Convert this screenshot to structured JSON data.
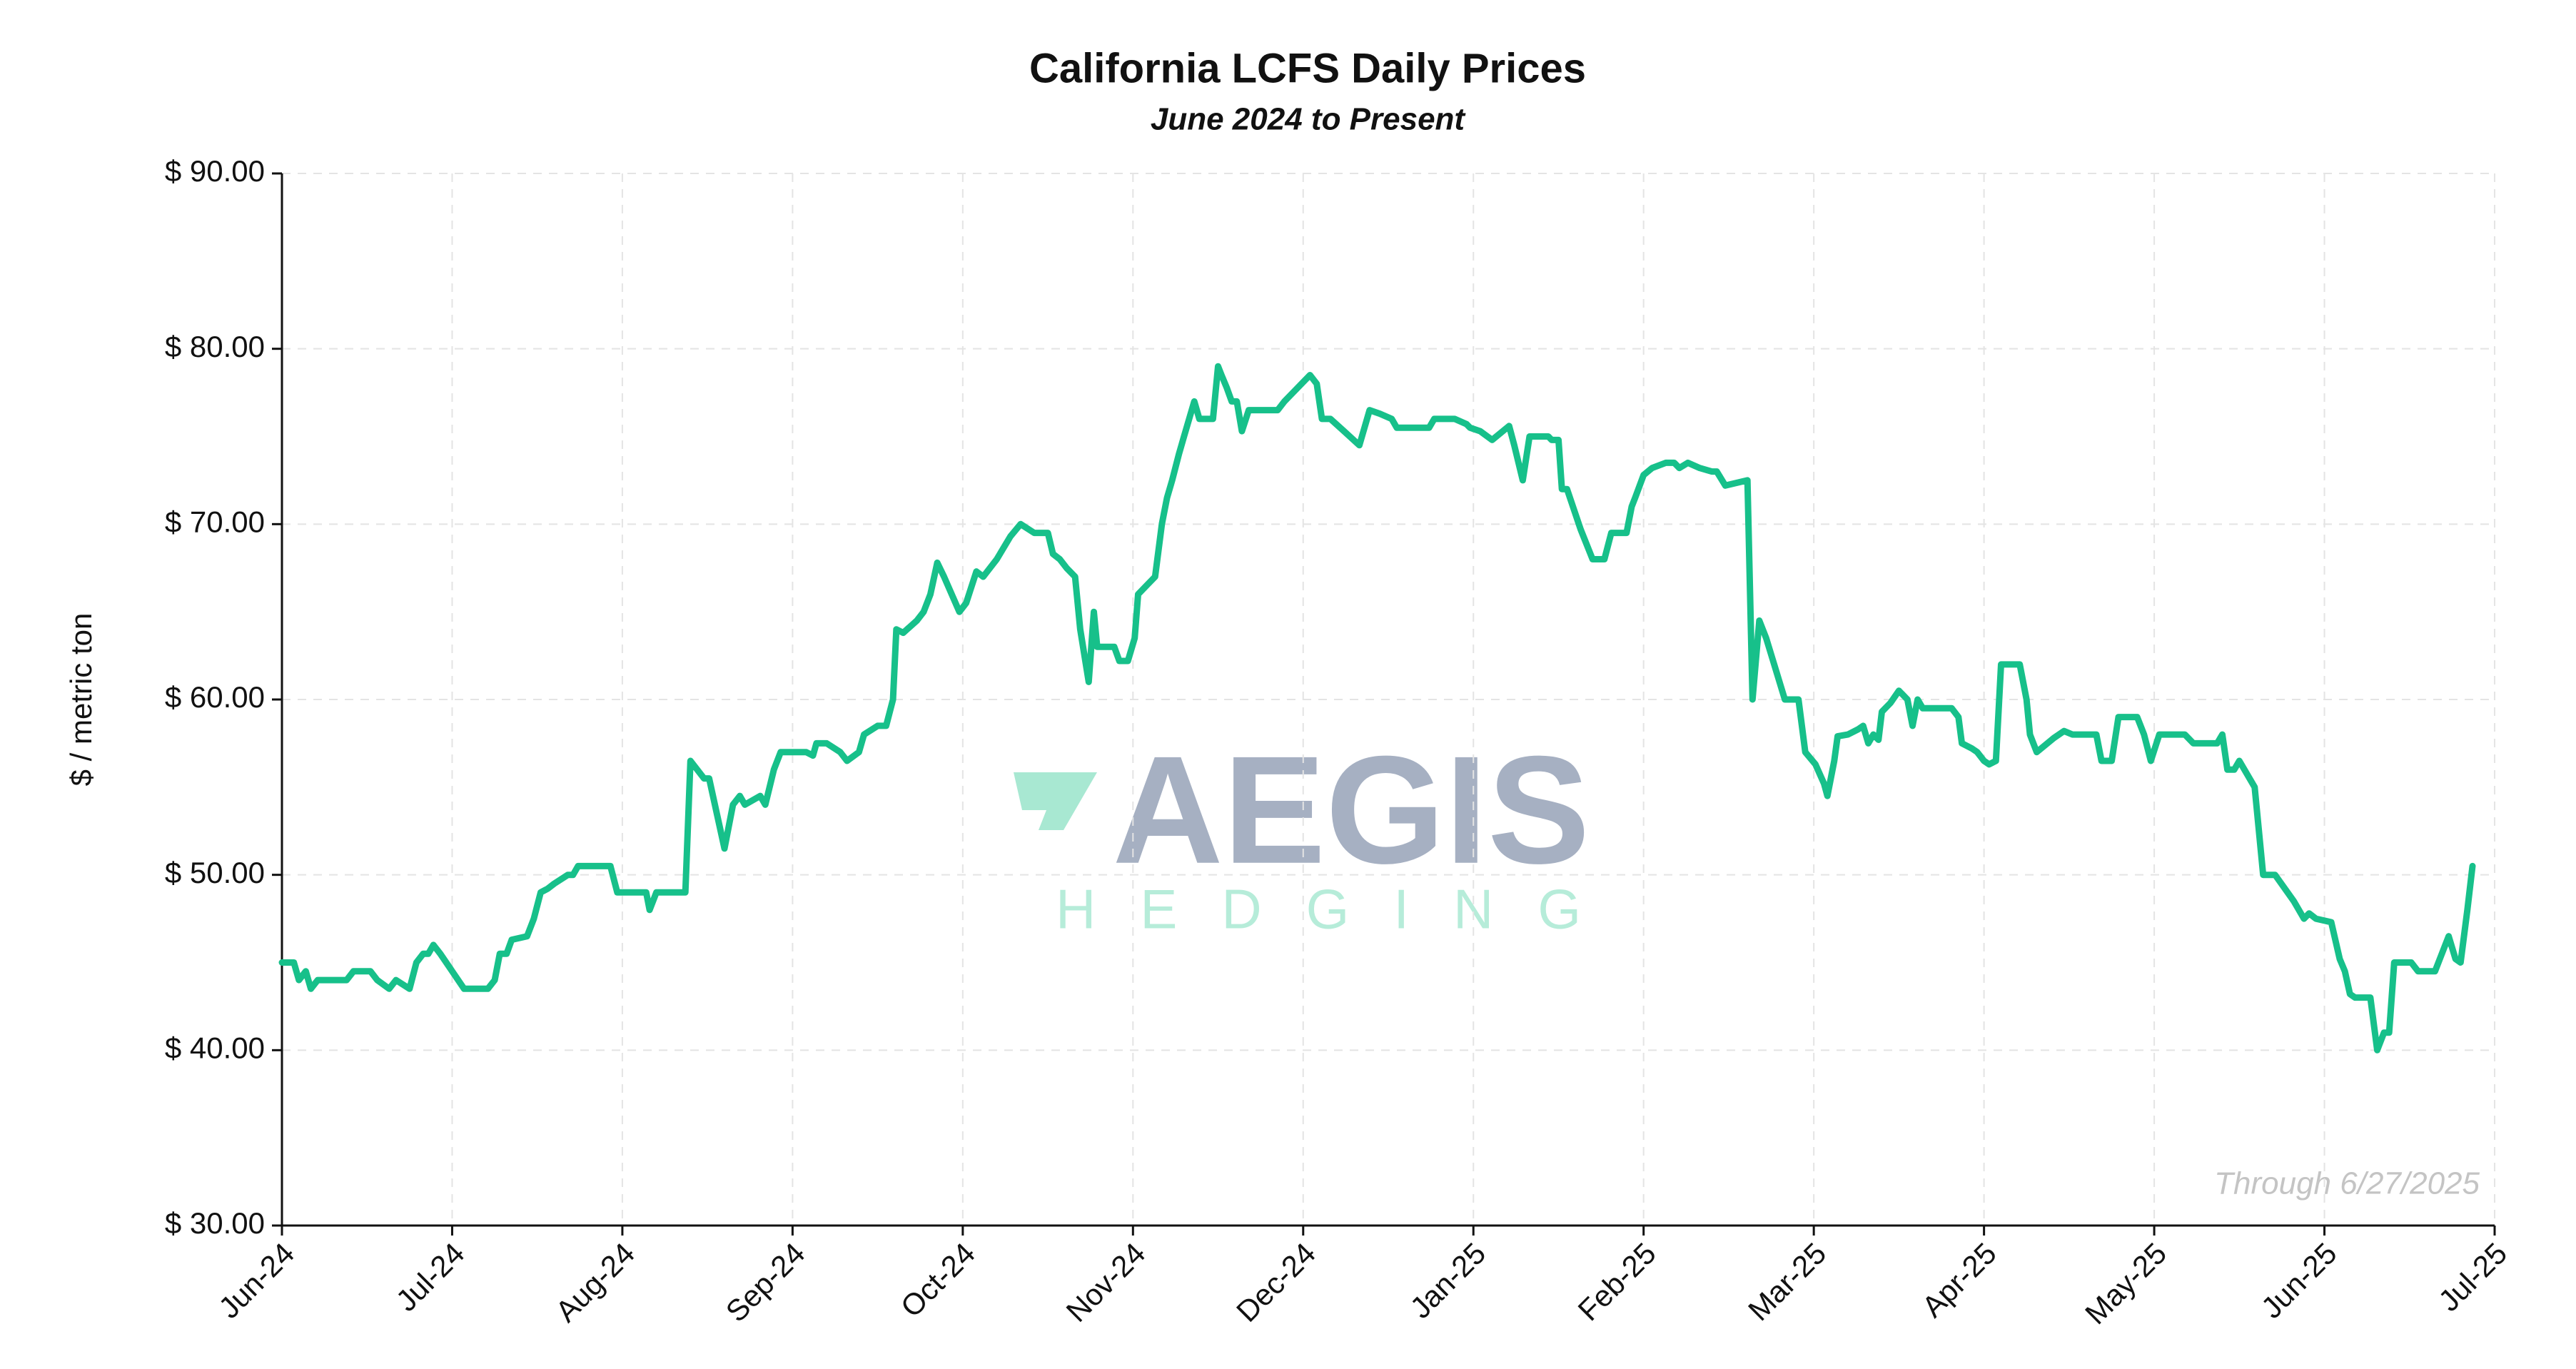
{
  "chart_data": {
    "type": "line",
    "title": "California LCFS Daily Prices",
    "subtitle": "June 2024 to Present",
    "y_label": "$ / metric ton",
    "annotation": "Through 6/27/2025",
    "watermark": [
      "AEGIS",
      "HEDGING"
    ],
    "grid": true,
    "xlim": [
      0,
      13
    ],
    "xticks": [
      {
        "value": 0,
        "label": "Jun-24"
      },
      {
        "value": 1,
        "label": "Jul-24"
      },
      {
        "value": 2,
        "label": "Aug-24"
      },
      {
        "value": 3,
        "label": "Sep-24"
      },
      {
        "value": 4,
        "label": "Oct-24"
      },
      {
        "value": 5,
        "label": "Nov-24"
      },
      {
        "value": 6,
        "label": "Dec-24"
      },
      {
        "value": 7,
        "label": "Jan-25"
      },
      {
        "value": 8,
        "label": "Feb-25"
      },
      {
        "value": 9,
        "label": "Mar-25"
      },
      {
        "value": 10,
        "label": "Apr-25"
      },
      {
        "value": 11,
        "label": "May-25"
      },
      {
        "value": 12,
        "label": "Jun-25"
      },
      {
        "value": 13,
        "label": "Jul-25"
      }
    ],
    "ylim": [
      30,
      90
    ],
    "yticks": [
      {
        "value": 30,
        "label": "$ 30.00"
      },
      {
        "value": 40,
        "label": "$ 40.00"
      },
      {
        "value": 50,
        "label": "$ 50.00"
      },
      {
        "value": 60,
        "label": "$ 60.00"
      },
      {
        "value": 70,
        "label": "$ 70.00"
      },
      {
        "value": 80,
        "label": "$ 80.00"
      },
      {
        "value": 90,
        "label": "$ 90.00"
      }
    ],
    "x": [
      0,
      0.07,
      0.1,
      0.14,
      0.17,
      0.21,
      0.38,
      0.42,
      0.52,
      0.56,
      0.63,
      0.67,
      0.75,
      0.79,
      0.83,
      0.86,
      0.89,
      0.93,
      1.07,
      1.21,
      1.25,
      1.28,
      1.32,
      1.35,
      1.44,
      1.48,
      1.52,
      1.56,
      1.6,
      1.68,
      1.71,
      1.74,
      1.93,
      1.97,
      2.14,
      2.16,
      2.2,
      2.37,
      2.4,
      2.44,
      2.48,
      2.51,
      2.6,
      2.65,
      2.69,
      2.72,
      2.81,
      2.84,
      2.89,
      2.93,
      3.08,
      3.12,
      3.14,
      3.2,
      3.28,
      3.32,
      3.39,
      3.42,
      3.5,
      3.55,
      3.59,
      3.61,
      3.65,
      3.73,
      3.77,
      3.81,
      3.85,
      3.89,
      3.98,
      4.02,
      4.08,
      4.12,
      4.2,
      4.28,
      4.34,
      4.42,
      4.5,
      4.53,
      4.57,
      4.61,
      4.66,
      4.69,
      4.74,
      4.77,
      4.79,
      4.89,
      4.92,
      4.97,
      5.01,
      5.03,
      5.08,
      5.13,
      5.17,
      5.2,
      5.23,
      5.27,
      5.3,
      5.36,
      5.39,
      5.47,
      5.5,
      5.52,
      5.55,
      5.58,
      5.61,
      5.64,
      5.68,
      5.85,
      5.89,
      5.99,
      6.04,
      6.08,
      6.11,
      6.16,
      6.24,
      6.33,
      6.39,
      6.45,
      6.52,
      6.55,
      6.74,
      6.77,
      6.89,
      6.96,
      6.98,
      7.04,
      7.11,
      7.21,
      7.24,
      7.29,
      7.33,
      7.44,
      7.46,
      7.5,
      7.52,
      7.55,
      7.63,
      7.7,
      7.77,
      7.81,
      7.9,
      7.93,
      7.95,
      8.0,
      8.05,
      8.13,
      8.18,
      8.21,
      8.26,
      8.33,
      8.4,
      8.43,
      8.48,
      8.61,
      8.64,
      8.68,
      8.72,
      8.83,
      8.91,
      8.95,
      9.01,
      9.06,
      9.08,
      9.12,
      9.14,
      9.2,
      9.26,
      9.29,
      9.32,
      9.35,
      9.38,
      9.4,
      9.45,
      9.5,
      9.55,
      9.58,
      9.61,
      9.64,
      9.81,
      9.85,
      9.87,
      9.93,
      9.96,
      10.0,
      10.03,
      10.07,
      10.1,
      10.21,
      10.25,
      10.27,
      10.31,
      10.41,
      10.47,
      10.52,
      10.66,
      10.69,
      10.75,
      10.79,
      10.9,
      10.94,
      10.98,
      11.03,
      11.18,
      11.23,
      11.37,
      11.4,
      11.43,
      11.47,
      11.5,
      11.59,
      11.64,
      11.71,
      11.82,
      11.88,
      11.91,
      11.95,
      12.04,
      12.09,
      12.12,
      12.15,
      12.18,
      12.27,
      12.31,
      12.35,
      12.38,
      12.41,
      12.51,
      12.55,
      12.65,
      12.73,
      12.77,
      12.8,
      12.84,
      12.87
    ],
    "series": [
      {
        "color": "#17c08a",
        "values": [
          45,
          45,
          44,
          44.5,
          43.5,
          44,
          44,
          44.5,
          44.5,
          44,
          43.5,
          44,
          43.5,
          45,
          45.5,
          45.5,
          46,
          45.5,
          43.5,
          43.5,
          44,
          45.5,
          45.5,
          46.3,
          46.5,
          47.5,
          49,
          49.2,
          49.5,
          50,
          50,
          50.5,
          50.5,
          49,
          49,
          48,
          49,
          49,
          56.5,
          56,
          55.5,
          55.5,
          51.5,
          54,
          54.5,
          54,
          54.5,
          54,
          56,
          57,
          57,
          56.8,
          57.5,
          57.5,
          57,
          56.5,
          57,
          58,
          58.5,
          58.5,
          60,
          64,
          63.8,
          64.5,
          65,
          66,
          67.8,
          67,
          65,
          65.5,
          67.3,
          67,
          68,
          69.3,
          70,
          69.5,
          69.5,
          68.3,
          68,
          67.5,
          67,
          64,
          61,
          65,
          63,
          63,
          62.2,
          62.2,
          63.5,
          66,
          66.5,
          67,
          70,
          71.5,
          72.5,
          74,
          75,
          77,
          76,
          76,
          79,
          78.5,
          77.8,
          77,
          77,
          75.3,
          76.5,
          76.5,
          77,
          78,
          78.5,
          78,
          76,
          76,
          75.3,
          74.5,
          76.5,
          76.3,
          76,
          75.5,
          75.5,
          76,
          76,
          75.7,
          75.5,
          75.3,
          74.8,
          75.6,
          74.5,
          72.5,
          75,
          75,
          74.8,
          74.8,
          72,
          72,
          69.7,
          68,
          68,
          69.5,
          69.5,
          71,
          71.5,
          72.8,
          73.2,
          73.5,
          73.5,
          73.2,
          73.5,
          73.2,
          73,
          73,
          72.2,
          72.5,
          60,
          64.5,
          63.5,
          60,
          60,
          57,
          56.3,
          55.2,
          54.5,
          56.5,
          57.9,
          58,
          58.3,
          58.5,
          57.5,
          58,
          57.7,
          59.3,
          59.8,
          60.5,
          60,
          58.5,
          60,
          59.5,
          59.5,
          59,
          57.5,
          57.2,
          57,
          56.5,
          56.3,
          56.5,
          62,
          62,
          60,
          58,
          57,
          57.8,
          58.2,
          58,
          58,
          56.5,
          56.5,
          59,
          59,
          58,
          56.5,
          58,
          58,
          57.5,
          57.5,
          58,
          56,
          56,
          56.5,
          55,
          50,
          50,
          48.5,
          47.5,
          47.8,
          47.5,
          47.3,
          45.2,
          44.5,
          43.2,
          43,
          43,
          40,
          41,
          41,
          45,
          45,
          44.5,
          44.5,
          46.5,
          45.2,
          45,
          48,
          50.5
        ]
      }
    ]
  }
}
